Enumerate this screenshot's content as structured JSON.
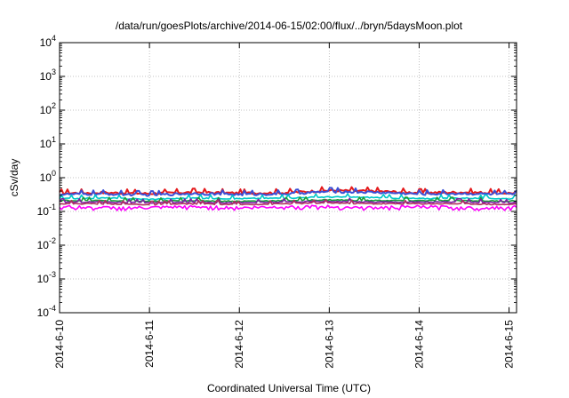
{
  "chart_data": {
    "type": "line",
    "title": "/data/run/goesPlots/archive/2014-06-15/02:00/flux/../bryn/5daysMoon.plot",
    "xlabel": "Coordinated Universal Time (UTC)",
    "ylabel": "cSv/day",
    "y_scale": "log",
    "ylim": [
      0.0001,
      10000
    ],
    "y_ticks": [
      {
        "base": "10",
        "exp": "-4",
        "value": 0.0001
      },
      {
        "base": "10",
        "exp": "-3",
        "value": 0.001
      },
      {
        "base": "10",
        "exp": "-2",
        "value": 0.01
      },
      {
        "base": "10",
        "exp": "-1",
        "value": 0.1
      },
      {
        "base": "10",
        "exp": "0",
        "value": 1
      },
      {
        "base": "10",
        "exp": "1",
        "value": 10
      },
      {
        "base": "10",
        "exp": "2",
        "value": 100
      },
      {
        "base": "10",
        "exp": "3",
        "value": 1000
      },
      {
        "base": "10",
        "exp": "4",
        "value": 10000
      }
    ],
    "xlim": [
      "2014-06-10 00:00",
      "2014-06-15 02:00"
    ],
    "x_ticks": [
      "2014-6-10",
      "2014-6-11",
      "2014-6-12",
      "2014-6-13",
      "2014-6-14",
      "2014-6-15"
    ],
    "grid": true,
    "legend": "none",
    "x": [
      "2014-06-10 00:00",
      "2014-06-10 12:00",
      "2014-06-11 00:00",
      "2014-06-11 12:00",
      "2014-06-12 00:00",
      "2014-06-12 12:00",
      "2014-06-13 00:00",
      "2014-06-13 12:00",
      "2014-06-14 00:00",
      "2014-06-14 12:00",
      "2014-06-15 00:00",
      "2014-06-15 02:00"
    ],
    "series": [
      {
        "color": "#e41a1c",
        "values": [
          0.35,
          0.36,
          0.34,
          0.37,
          0.35,
          0.36,
          0.42,
          0.4,
          0.36,
          0.37,
          0.35,
          0.36
        ]
      },
      {
        "color": "#3a4fd6",
        "values": [
          0.32,
          0.33,
          0.31,
          0.34,
          0.32,
          0.33,
          0.39,
          0.37,
          0.33,
          0.34,
          0.32,
          0.33
        ]
      },
      {
        "color": "#00c8c8",
        "values": [
          0.24,
          0.25,
          0.23,
          0.25,
          0.24,
          0.25,
          0.27,
          0.26,
          0.24,
          0.25,
          0.24,
          0.24
        ]
      },
      {
        "color": "#1a9e3a",
        "values": [
          0.21,
          0.21,
          0.2,
          0.21,
          0.2,
          0.21,
          0.22,
          0.21,
          0.21,
          0.21,
          0.2,
          0.21
        ]
      },
      {
        "color": "#7b1fa2",
        "values": [
          0.19,
          0.19,
          0.18,
          0.19,
          0.18,
          0.19,
          0.2,
          0.19,
          0.19,
          0.19,
          0.18,
          0.19
        ]
      },
      {
        "color": "#b03060",
        "values": [
          0.17,
          0.17,
          0.16,
          0.17,
          0.16,
          0.17,
          0.18,
          0.17,
          0.17,
          0.17,
          0.16,
          0.17
        ]
      },
      {
        "color": "#ff00ff",
        "values": [
          0.14,
          0.13,
          0.13,
          0.14,
          0.13,
          0.14,
          0.14,
          0.13,
          0.14,
          0.13,
          0.13,
          0.14
        ]
      }
    ]
  }
}
